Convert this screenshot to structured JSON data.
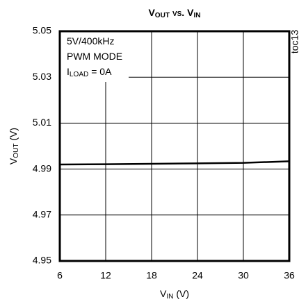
{
  "chart_data": {
    "type": "line",
    "title": [
      "V",
      "OUT",
      " vs. V",
      "IN"
    ],
    "x_label": [
      "V",
      "IN",
      " (V)"
    ],
    "y_label": [
      "V",
      "OUT",
      " (V)"
    ],
    "annotation": [
      [
        "5V/400kHz"
      ],
      [
        "PWM MODE"
      ],
      [
        "I",
        "LOAD",
        " = 0A"
      ]
    ],
    "side_label": "toc13",
    "x": [
      6,
      12,
      18,
      24,
      30,
      36
    ],
    "series": [
      {
        "name": null,
        "color": "#000000",
        "values": [
          4.992,
          4.9921,
          4.9923,
          4.9925,
          4.9927,
          4.9934
        ]
      }
    ],
    "xlim": [
      6,
      36
    ],
    "xticks": [
      6,
      12,
      18,
      24,
      30,
      36
    ],
    "ylim": [
      4.95,
      5.05
    ],
    "yticks": [
      {
        "value": 4.95,
        "label": "4.95"
      },
      {
        "value": 4.97,
        "label": "4.97"
      },
      {
        "value": 4.99,
        "label": "4.99"
      },
      {
        "value": 5.01,
        "label": "5.01"
      },
      {
        "value": 5.03,
        "label": "5.03"
      },
      {
        "value": 5.05,
        "label": "5.05"
      }
    ],
    "grid": true
  }
}
